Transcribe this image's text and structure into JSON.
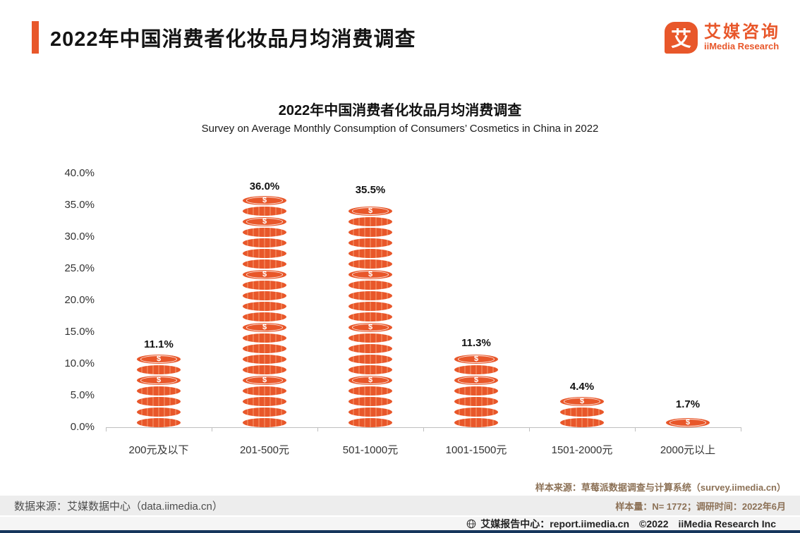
{
  "header": {
    "title": "2022年中国消费者化妆品月均消费调查",
    "logo": {
      "glyph": "艾",
      "name_cn": "艾媒咨询",
      "name_en": "iiMedia Research"
    }
  },
  "chart_data": {
    "type": "bar",
    "title": "2022年中国消费者化妆品月均消费调查",
    "subtitle": "Survey on Average Monthly Consumption of Consumers’ Cosmetics in China in 2022",
    "categories": [
      "200元及以下",
      "201-500元",
      "501-1000元",
      "1001-1500元",
      "1501-2000元",
      "2000元以上"
    ],
    "values": [
      11.1,
      36.0,
      35.5,
      11.3,
      4.4,
      1.7
    ],
    "value_labels": [
      "11.1%",
      "36.0%",
      "35.5%",
      "11.3%",
      "4.4%",
      "1.7%"
    ],
    "xlabel": "",
    "ylabel": "",
    "ylim": [
      0,
      40
    ],
    "ytick_step": 5,
    "ytick_labels": [
      "0.0%",
      "5.0%",
      "10.0%",
      "15.0%",
      "20.0%",
      "25.0%",
      "30.0%",
      "35.0%",
      "40.0%"
    ],
    "bar_color": "#E8572A",
    "bar_style": "coin-stack",
    "grid": false,
    "legend": "none"
  },
  "footer": {
    "data_source": "数据来源：艾媒数据中心（data.iimedia.cn）",
    "sample_source": "样本来源：草莓派数据调查与计算系统（survey.iimedia.cn）",
    "sample_info": "样本量：N= 1772；调研时间：2022年6月",
    "bottom_bar": "艾媒报告中心：report.iimedia.cn　©2022　iiMedia Research Inc"
  },
  "colors": {
    "accent": "#E8572A",
    "footer_band": "#EDEDED",
    "bottom_line": "#16365C"
  }
}
